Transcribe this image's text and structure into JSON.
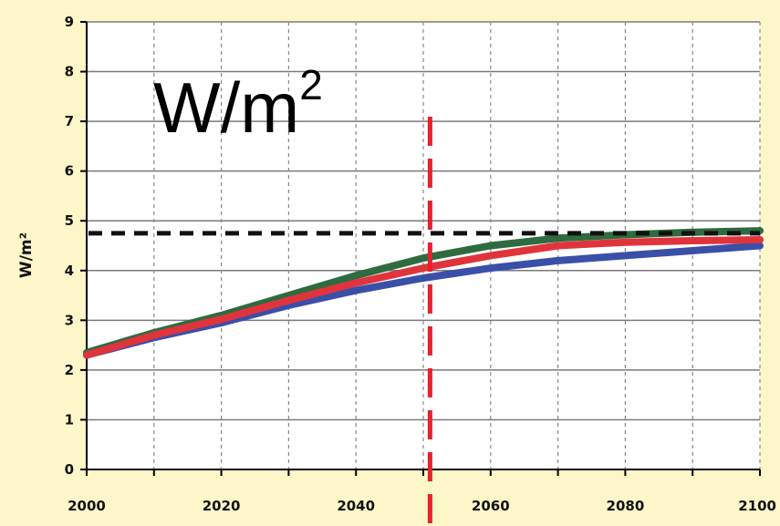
{
  "chart_data": {
    "type": "line",
    "unit_annotation": {
      "base": "W/m",
      "exponent": "2"
    },
    "ylabel": "W/m²",
    "xlim": [
      2000,
      2100
    ],
    "ylim": [
      0,
      9
    ],
    "x_ticks": [
      "2000",
      "2020",
      "2040",
      "2060",
      "2080",
      "2100"
    ],
    "y_ticks": [
      "0",
      "1",
      "2",
      "3",
      "4",
      "5",
      "6",
      "7",
      "8",
      "9"
    ],
    "grid": true,
    "x": [
      2000,
      2010,
      2020,
      2030,
      2040,
      2050,
      2060,
      2070,
      2080,
      2090,
      2100
    ],
    "series": [
      {
        "color": "#2e6b3e",
        "values": [
          2.35,
          2.75,
          3.1,
          3.5,
          3.9,
          4.25,
          4.5,
          4.65,
          4.72,
          4.77,
          4.8
        ]
      },
      {
        "color": "#3a4fa8",
        "values": [
          2.3,
          2.65,
          2.95,
          3.3,
          3.6,
          3.85,
          4.05,
          4.2,
          4.3,
          4.4,
          4.5
        ]
      },
      {
        "color": "#e0343c",
        "values": [
          2.3,
          2.7,
          3.02,
          3.4,
          3.75,
          4.05,
          4.3,
          4.5,
          4.57,
          4.6,
          4.62
        ]
      }
    ],
    "reference_lines": [
      {
        "orientation": "horizontal",
        "value": 4.75,
        "color": "#111111",
        "style": "dashed"
      },
      {
        "orientation": "vertical",
        "value": 2051,
        "color": "#e8212b",
        "style": "dashed"
      }
    ],
    "colors": {
      "background": "#fdf6c8",
      "plot_background": "#ffffff",
      "grid": "#888888"
    }
  }
}
